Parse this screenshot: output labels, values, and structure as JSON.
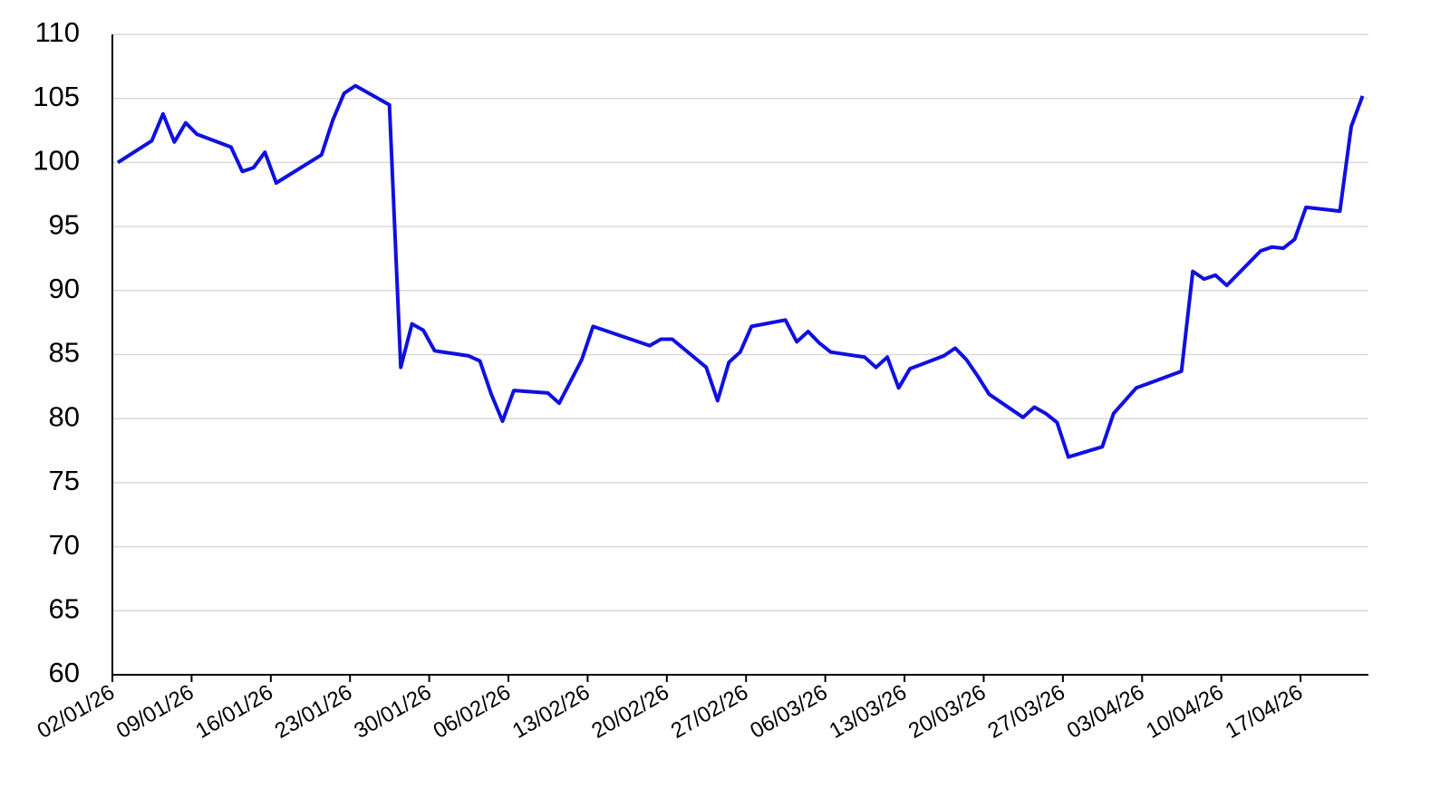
{
  "chart_data": {
    "type": "line",
    "x": [
      "2026-01-02",
      "2026-01-05",
      "2026-01-06",
      "2026-01-07",
      "2026-01-08",
      "2026-01-09",
      "2026-01-12",
      "2026-01-13",
      "2026-01-14",
      "2026-01-15",
      "2026-01-16",
      "2026-01-20",
      "2026-01-21",
      "2026-01-22",
      "2026-01-23",
      "2026-01-26",
      "2026-01-27",
      "2026-01-28",
      "2026-01-29",
      "2026-01-30",
      "2026-02-02",
      "2026-02-03",
      "2026-02-04",
      "2026-02-05",
      "2026-02-06",
      "2026-02-09",
      "2026-02-10",
      "2026-02-11",
      "2026-02-12",
      "2026-02-13",
      "2026-02-17",
      "2026-02-18",
      "2026-02-19",
      "2026-02-20",
      "2026-02-23",
      "2026-02-24",
      "2026-02-25",
      "2026-02-26",
      "2026-02-27",
      "2026-03-02",
      "2026-03-03",
      "2026-03-04",
      "2026-03-05",
      "2026-03-06",
      "2026-03-09",
      "2026-03-10",
      "2026-03-11",
      "2026-03-12",
      "2026-03-13",
      "2026-03-16",
      "2026-03-17",
      "2026-03-18",
      "2026-03-19",
      "2026-03-20",
      "2026-03-23",
      "2026-03-24",
      "2026-03-25",
      "2026-03-26",
      "2026-03-27",
      "2026-03-30",
      "2026-03-31",
      "2026-04-01",
      "2026-04-02",
      "2026-04-06",
      "2026-04-07",
      "2026-04-08",
      "2026-04-09",
      "2026-04-10",
      "2026-04-13",
      "2026-04-14",
      "2026-04-15",
      "2026-04-16",
      "2026-04-17",
      "2026-04-20",
      "2026-04-21",
      "2026-04-22"
    ],
    "series": [
      {
        "color": "#1010e0",
        "values": [
          100,
          101.7,
          103.8,
          101.6,
          103.1,
          102.2,
          101.2,
          99.3,
          99.6,
          100.8,
          98.4,
          100.6,
          103.3,
          105.4,
          106.0,
          104.5,
          84.0,
          87.4,
          86.9,
          85.3,
          84.9,
          84.5,
          81.9,
          79.8,
          82.2,
          82.0,
          81.2,
          82.9,
          84.6,
          87.2,
          86.0,
          85.7,
          86.2,
          86.2,
          84.0,
          81.4,
          84.4,
          85.2,
          87.2,
          87.7,
          86.0,
          86.8,
          85.9,
          85.2,
          84.8,
          84.0,
          84.8,
          82.4,
          83.9,
          84.9,
          85.5,
          84.6,
          83.3,
          81.9,
          80.1,
          80.9,
          80.4,
          79.7,
          77.0,
          77.8,
          80.4,
          81.4,
          82.4,
          83.7,
          91.5,
          90.9,
          91.2,
          90.4,
          93.1,
          93.4,
          93.3,
          94.0,
          96.5,
          96.2,
          102.8,
          105.2
        ]
      }
    ],
    "xlim": [
      "2026-01-02",
      "2026-04-23"
    ],
    "xticks": [
      {
        "value": "2026-01-02",
        "label": "02/01/26"
      },
      {
        "value": "2026-01-09",
        "label": "09/01/26"
      },
      {
        "value": "2026-01-16",
        "label": "16/01/26"
      },
      {
        "value": "2026-01-23",
        "label": "23/01/26"
      },
      {
        "value": "2026-01-30",
        "label": "30/01/26"
      },
      {
        "value": "2026-02-06",
        "label": "06/02/26"
      },
      {
        "value": "2026-02-13",
        "label": "13/02/26"
      },
      {
        "value": "2026-02-20",
        "label": "20/02/26"
      },
      {
        "value": "2026-02-27",
        "label": "27/02/26"
      },
      {
        "value": "2026-03-06",
        "label": "06/03/26"
      },
      {
        "value": "2026-03-13",
        "label": "13/03/26"
      },
      {
        "value": "2026-03-20",
        "label": "20/03/26"
      },
      {
        "value": "2026-03-27",
        "label": "27/03/26"
      },
      {
        "value": "2026-04-03",
        "label": "03/04/26"
      },
      {
        "value": "2026-04-10",
        "label": "10/04/26"
      },
      {
        "value": "2026-04-17",
        "label": "17/04/26"
      }
    ],
    "ylim": [
      60,
      110
    ],
    "yticks": [
      60,
      65,
      70,
      75,
      80,
      85,
      90,
      95,
      100,
      105,
      110
    ],
    "grid": true
  }
}
